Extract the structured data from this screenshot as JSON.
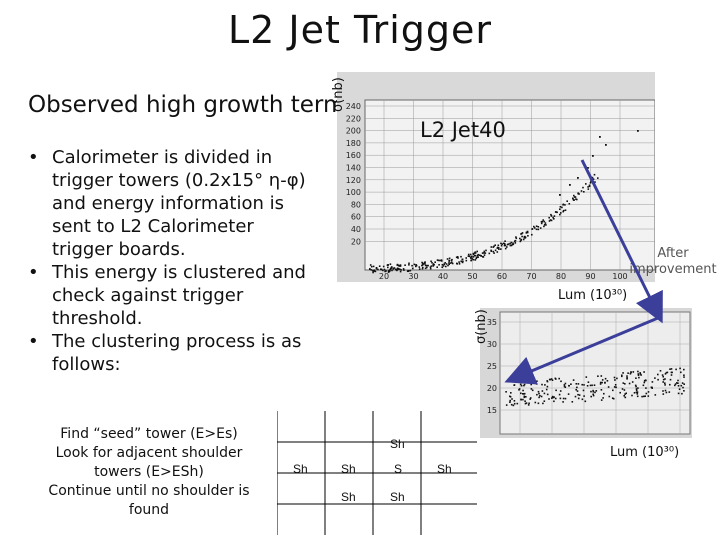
{
  "slide": {
    "title": "L2 Jet Trigger",
    "subtitle": "Observed high growth term"
  },
  "bullets": [
    {
      "marker": "•",
      "text": "Calorimeter is divided in trigger towers (0.2x15° η-φ) and energy information is sent to L2 Calorimeter trigger boards."
    },
    {
      "marker": "•",
      "text": "This energy is clustered and check against trigger threshold."
    },
    {
      "marker": "•",
      "text": " The clustering process is as follows:"
    }
  ],
  "seed": {
    "line1": "Find “seed” tower (E>Es)",
    "line2": "Look for adjacent shoulder towers (E>ESh)",
    "line3": "Continue until no shoulder is found",
    "grid": {
      "top": "Sh",
      "left_far": "Sh",
      "left": "Sh",
      "center": "S",
      "right": "Sh",
      "bottom_left": "Sh",
      "bottom_center": "Sh"
    }
  },
  "plot1": {
    "ylabel": "σ(nb)",
    "label": "L2 Jet40",
    "xlabel": "Lum (10³⁰)",
    "yticks": [
      "240",
      "220",
      "200",
      "180",
      "160",
      "140",
      "120",
      "100",
      "80",
      "60",
      "40",
      "20"
    ],
    "xticks": [
      "20",
      "30",
      "40",
      "50",
      "60",
      "70",
      "80",
      "90",
      "100"
    ]
  },
  "plot2": {
    "ylabel": "σ(nb)",
    "xlabel": "Lum (10³⁰)",
    "yticks": [
      "35",
      "30",
      "25",
      "20",
      "15"
    ],
    "annotation": "After improvement"
  }
}
